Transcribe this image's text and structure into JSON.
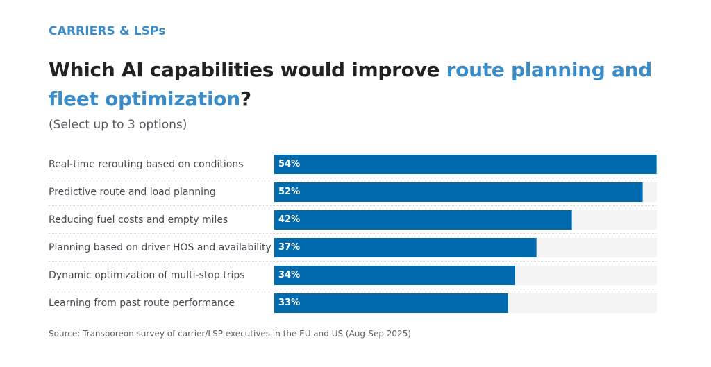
{
  "kicker": "CARRIERS & LSPs",
  "title": {
    "part1": "Which AI capabilities would improve ",
    "highlight": "route planning and fleet optimization",
    "part2": "?"
  },
  "subtitle": "(Select up to 3 options)",
  "source": "Source: Transporeon survey of carrier/LSP executives in the EU and US (Aug-Sep 2025)",
  "colors": {
    "accent": "#3a8cc9",
    "bar": "#006aae",
    "track": "#f3f3f3",
    "title": "#222222"
  },
  "chart_data": {
    "type": "bar",
    "orientation": "horizontal",
    "title": "Which AI capabilities would improve route planning and fleet optimization?",
    "subtitle": "(Select up to 3 options)",
    "xlabel": "",
    "ylabel": "",
    "unit": "%",
    "xlim": [
      0,
      54
    ],
    "grid": false,
    "legend": "none",
    "categories": [
      "Real-time rerouting based on conditions",
      "Predictive route and load planning",
      "Reducing fuel costs and empty miles",
      "Planning based on driver HOS and availability",
      "Dynamic optimization of multi-stop trips",
      "Learning from past route performance"
    ],
    "values": [
      54,
      52,
      42,
      37,
      34,
      33
    ],
    "data_labels": [
      "54%",
      "52%",
      "42%",
      "37%",
      "34%",
      "33%"
    ]
  }
}
